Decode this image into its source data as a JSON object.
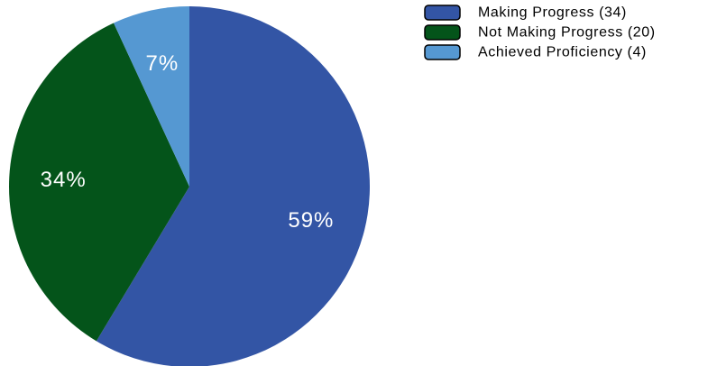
{
  "chart_data": {
    "type": "pie",
    "title": "",
    "slices": [
      {
        "label": "Making Progress (34)",
        "value": 34,
        "percent_label": "59%",
        "color": "#3355a5"
      },
      {
        "label": "Not Making Progress (20)",
        "value": 20,
        "percent_label": "34%",
        "color": "#04541a"
      },
      {
        "label": "Achieved Proficiency (4)",
        "value": 4,
        "percent_label": "7%",
        "color": "#5598d2"
      }
    ],
    "start_angle_deg": 0,
    "direction": "clockwise",
    "legend_position": "top-right"
  }
}
